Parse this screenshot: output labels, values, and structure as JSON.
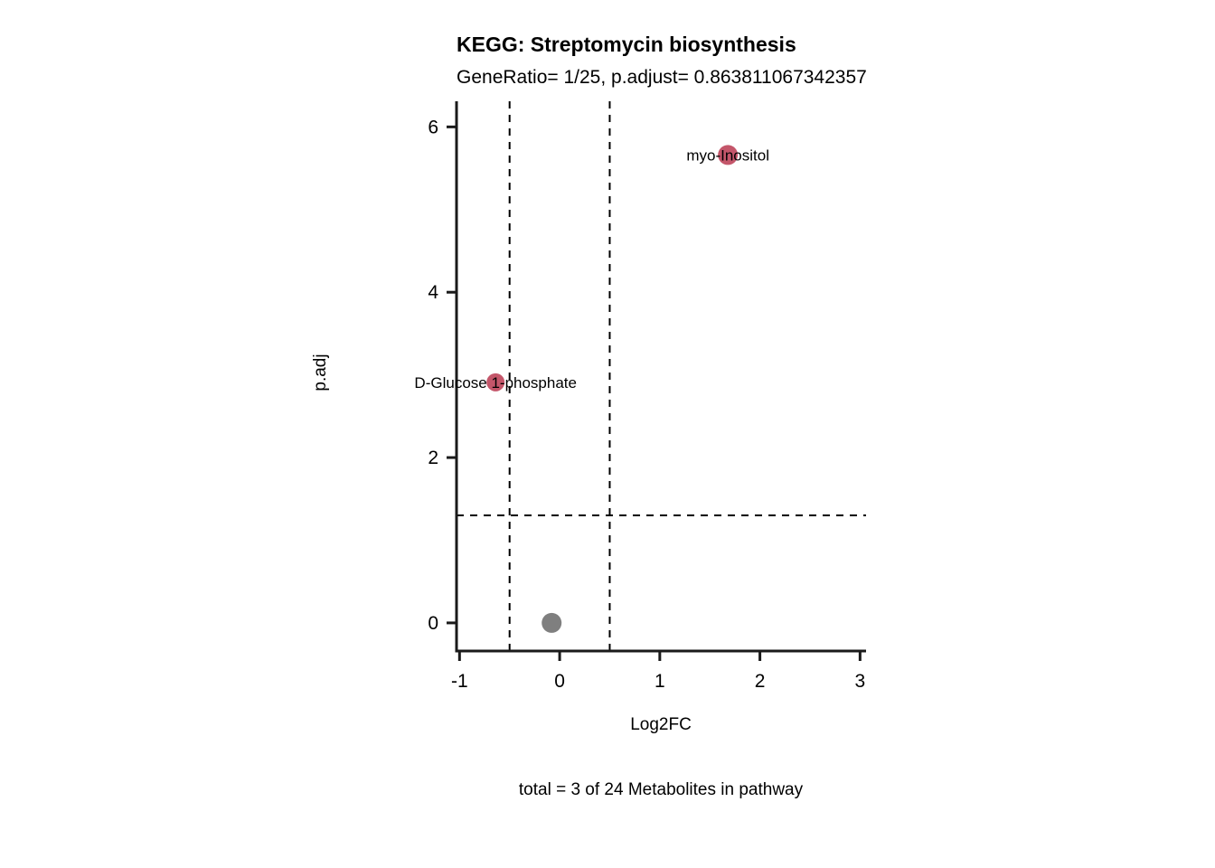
{
  "title": "KEGG: Streptomycin biosynthesis",
  "subtitle": "GeneRatio= 1/25, p.adjust= 0.863811067342357",
  "caption": "total = 3 of 24 Metabolites in pathway",
  "chart_data": {
    "type": "scatter",
    "title": "KEGG: Streptomycin biosynthesis",
    "subtitle": "GeneRatio= 1/25, p.adjust= 0.863811067342357",
    "xlabel": "Log2FC",
    "ylabel": "p.adj",
    "x_ticks": [
      -1,
      0,
      1,
      2,
      3
    ],
    "y_ticks": [
      0,
      2,
      4,
      6
    ],
    "x_range": [
      -1.03,
      3.06
    ],
    "y_range": [
      -0.34,
      6.31
    ],
    "grid": false,
    "legend": false,
    "threshold_vlines": [
      -0.5,
      0.5
    ],
    "threshold_hline": 1.3,
    "colors": {
      "significant": "#C4566A",
      "not_significant": "#7F7F7F",
      "axis": "#1a1a1a",
      "threshold_line": "#000000"
    },
    "points": [
      {
        "label": "myo-Inositol",
        "x": 1.68,
        "y": 5.66,
        "color": "#C4566A",
        "size": 11
      },
      {
        "label": "D-Glucose 1-phosphate",
        "x": -0.64,
        "y": 2.91,
        "color": "#C4566A",
        "size": 10
      },
      {
        "label": "",
        "x": -0.08,
        "y": 0.0,
        "color": "#7F7F7F",
        "size": 11
      }
    ]
  }
}
